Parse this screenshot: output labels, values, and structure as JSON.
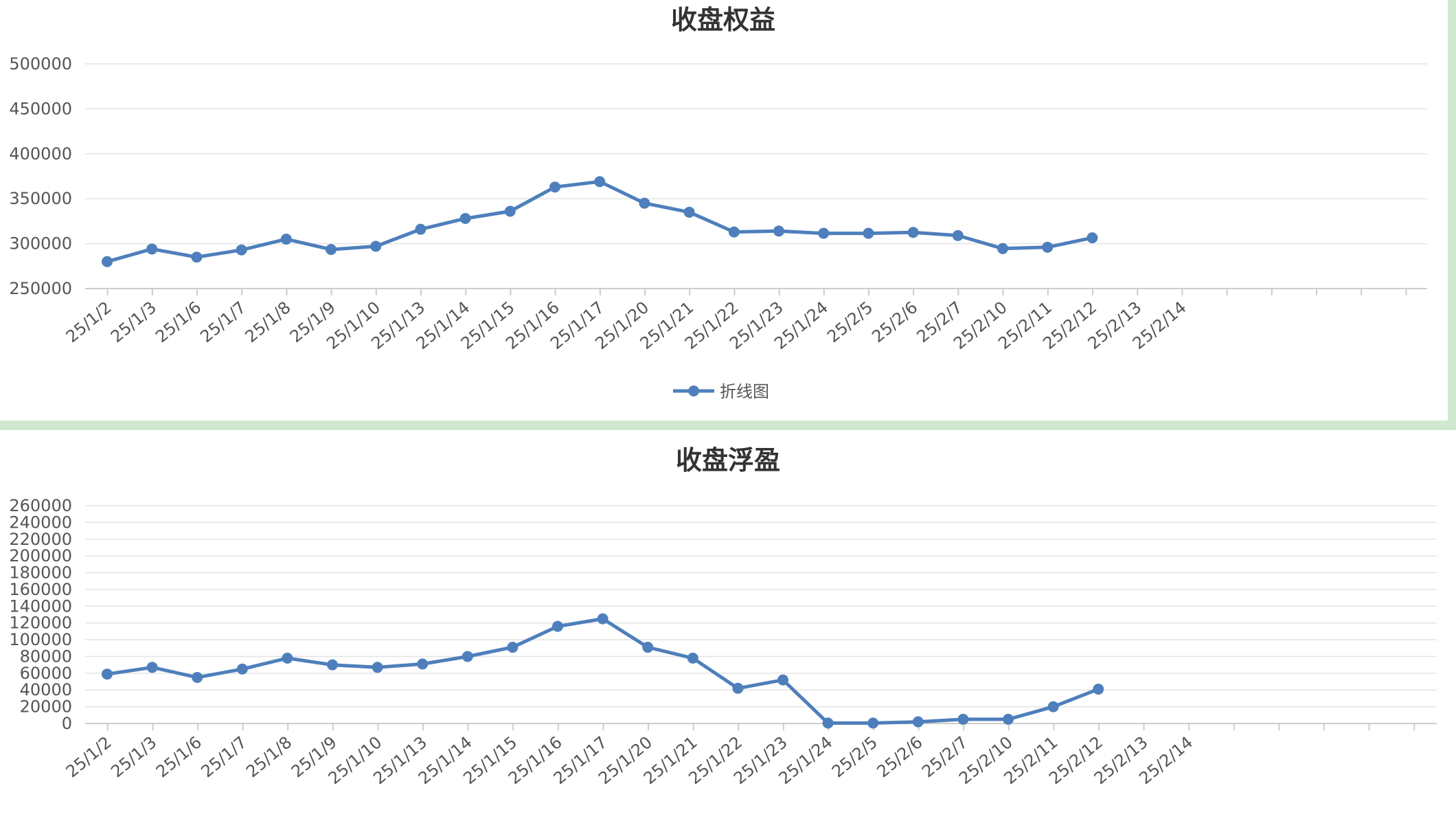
{
  "chart_data": [
    {
      "type": "line",
      "title": "收盘权益",
      "categories": [
        "25/1/2",
        "25/1/3",
        "25/1/6",
        "25/1/7",
        "25/1/8",
        "25/1/9",
        "25/1/10",
        "25/1/13",
        "25/1/14",
        "25/1/15",
        "25/1/16",
        "25/1/17",
        "25/1/20",
        "25/1/21",
        "25/1/22",
        "25/1/23",
        "25/1/24",
        "25/2/5",
        "25/2/6",
        "25/2/7",
        "25/2/10",
        "25/2/11",
        "25/2/12",
        "25/2/13",
        "25/2/14"
      ],
      "series": [
        {
          "name": "折线图",
          "values": [
            280000,
            294000,
            285000,
            293000,
            305000,
            293500,
            297000,
            316000,
            328000,
            336000,
            363000,
            369000,
            345000,
            335000,
            313000,
            314000,
            311500,
            311500,
            312500,
            309000,
            294500,
            296000,
            306500,
            null,
            null
          ]
        }
      ],
      "ylim": [
        250000,
        500000
      ],
      "yticks": [
        "250000",
        "300000",
        "350000",
        "400000",
        "450000",
        "500000"
      ],
      "grid": true,
      "legend_position": "bottom"
    },
    {
      "type": "line",
      "title": "收盘浮盈",
      "categories": [
        "25/1/2",
        "25/1/3",
        "25/1/6",
        "25/1/7",
        "25/1/8",
        "25/1/9",
        "25/1/10",
        "25/1/13",
        "25/1/14",
        "25/1/15",
        "25/1/16",
        "25/1/17",
        "25/1/20",
        "25/1/21",
        "25/1/22",
        "25/1/23",
        "25/1/24",
        "25/2/5",
        "25/2/6",
        "25/2/7",
        "25/2/10",
        "25/2/11",
        "25/2/12",
        "25/2/13",
        "25/2/14"
      ],
      "series": [
        {
          "values": [
            59000,
            67000,
            55000,
            65000,
            78000,
            70000,
            67000,
            71000,
            80000,
            91000,
            116000,
            125000,
            91000,
            78000,
            42000,
            52000,
            500,
            500,
            2000,
            5000,
            5000,
            20000,
            41000,
            null,
            null
          ]
        }
      ],
      "ylim": [
        0,
        260000
      ],
      "yticks": [
        "0",
        "20000",
        "40000",
        "60000",
        "80000",
        "100000",
        "120000",
        "140000",
        "160000",
        "180000",
        "200000",
        "220000",
        "240000",
        "260000"
      ],
      "grid": true
    }
  ],
  "colors": {
    "line": "#4e7fbc",
    "grid": "#e3e3e3",
    "axis": "#cccccc",
    "text": "#555555",
    "title": "#333333",
    "separator": "#cfe8cf"
  }
}
